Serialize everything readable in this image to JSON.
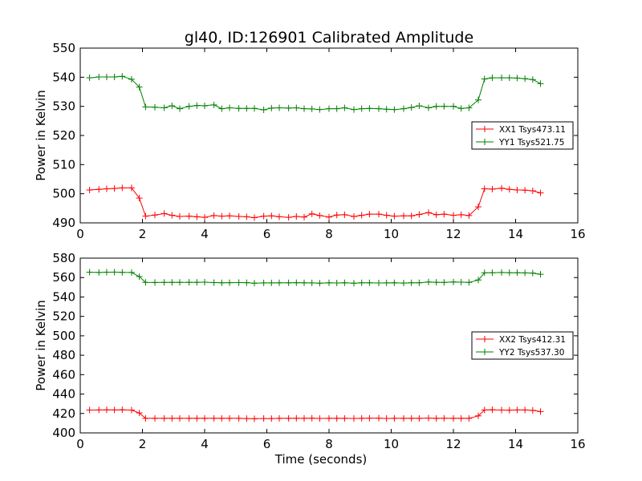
{
  "title": "gl40, ID:126901 Calibrated Amplitude",
  "chart_data": [
    {
      "type": "line",
      "ylabel": "Power in Kelvin",
      "xlabel": "",
      "xlim": [
        0,
        16
      ],
      "ylim": [
        490,
        550
      ],
      "xticks": [
        "0",
        "2",
        "4",
        "6",
        "8",
        "10",
        "12",
        "14",
        "16"
      ],
      "yticks": [
        "490",
        "500",
        "510",
        "520",
        "530",
        "540",
        "550"
      ],
      "legend_position": "right",
      "x": [
        0.3,
        0.6,
        0.85,
        1.1,
        1.35,
        1.65,
        1.9,
        2.1,
        2.4,
        2.7,
        2.95,
        3.2,
        3.5,
        3.75,
        4.0,
        4.3,
        4.55,
        4.8,
        5.1,
        5.35,
        5.6,
        5.9,
        6.15,
        6.4,
        6.7,
        6.95,
        7.2,
        7.45,
        7.7,
        8.0,
        8.25,
        8.5,
        8.8,
        9.05,
        9.3,
        9.6,
        9.85,
        10.1,
        10.4,
        10.65,
        10.9,
        11.2,
        11.45,
        11.7,
        12.0,
        12.25,
        12.5,
        12.8,
        13.0,
        13.25,
        13.55,
        13.8,
        14.05,
        14.3,
        14.55,
        14.8
      ],
      "series": [
        {
          "name": "XX1 Tsys473.11",
          "color": "#ff0000",
          "values": [
            501.3,
            501.5,
            501.7,
            501.8,
            502.0,
            502.0,
            498.5,
            492.3,
            492.7,
            493.2,
            492.6,
            492.2,
            492.3,
            492.1,
            491.9,
            492.5,
            492.3,
            492.4,
            492.2,
            492.1,
            491.8,
            492.3,
            492.4,
            492.1,
            491.9,
            492.2,
            492.0,
            493.1,
            492.5,
            492.0,
            492.7,
            492.8,
            492.2,
            492.6,
            493.0,
            493.0,
            492.6,
            492.3,
            492.4,
            492.4,
            492.9,
            493.5,
            492.8,
            493.0,
            492.6,
            492.8,
            492.5,
            495.5,
            501.7,
            501.6,
            501.9,
            501.5,
            501.3,
            501.2,
            501.0,
            500.3
          ]
        },
        {
          "name": "YY1 Tsys521.75",
          "color": "#008000",
          "values": [
            539.8,
            540.1,
            540.1,
            540.1,
            540.3,
            539.3,
            536.6,
            529.8,
            529.7,
            529.5,
            530.2,
            529.2,
            530.0,
            530.3,
            530.2,
            530.5,
            529.2,
            529.5,
            529.3,
            529.3,
            529.3,
            528.8,
            529.4,
            529.5,
            529.4,
            529.5,
            529.2,
            529.1,
            528.9,
            529.2,
            529.2,
            529.5,
            528.9,
            529.2,
            529.3,
            529.2,
            529.0,
            528.9,
            529.2,
            529.6,
            530.2,
            529.5,
            530.0,
            530.0,
            530.0,
            529.3,
            529.5,
            532.2,
            539.4,
            539.8,
            539.8,
            539.8,
            539.7,
            539.5,
            539.2,
            537.8
          ]
        }
      ]
    },
    {
      "type": "line",
      "ylabel": "Power in Kelvin",
      "xlabel": "Time (seconds)",
      "xlim": [
        0,
        16
      ],
      "ylim": [
        400,
        580
      ],
      "xticks": [
        "0",
        "2",
        "4",
        "6",
        "8",
        "10",
        "12",
        "14",
        "16"
      ],
      "yticks": [
        "400",
        "420",
        "440",
        "460",
        "480",
        "500",
        "520",
        "540",
        "560",
        "580"
      ],
      "legend_position": "right",
      "x": [
        0.3,
        0.6,
        0.85,
        1.1,
        1.35,
        1.65,
        1.9,
        2.1,
        2.4,
        2.7,
        2.95,
        3.2,
        3.5,
        3.75,
        4.0,
        4.3,
        4.55,
        4.8,
        5.1,
        5.35,
        5.6,
        5.9,
        6.15,
        6.4,
        6.7,
        6.95,
        7.2,
        7.45,
        7.7,
        8.0,
        8.25,
        8.5,
        8.8,
        9.05,
        9.3,
        9.6,
        9.85,
        10.1,
        10.4,
        10.65,
        10.9,
        11.2,
        11.45,
        11.7,
        12.0,
        12.25,
        12.5,
        12.8,
        13.0,
        13.25,
        13.55,
        13.8,
        14.05,
        14.3,
        14.55,
        14.8
      ],
      "series": [
        {
          "name": "XX2 Tsys412.31",
          "color": "#ff0000",
          "values": [
            423.5,
            423.6,
            423.7,
            423.6,
            423.8,
            423.5,
            420.5,
            415.0,
            415.0,
            415.0,
            415.0,
            415.0,
            415.0,
            415.0,
            415.0,
            415.0,
            415.0,
            415.0,
            415.0,
            414.8,
            414.6,
            414.9,
            414.8,
            415.0,
            415.0,
            415.1,
            415.0,
            415.2,
            414.9,
            415.0,
            415.0,
            415.0,
            414.9,
            415.0,
            415.2,
            415.2,
            414.9,
            415.0,
            415.0,
            415.0,
            415.0,
            415.3,
            415.0,
            415.1,
            415.0,
            415.0,
            415.0,
            417.5,
            423.6,
            423.8,
            423.5,
            423.4,
            423.6,
            423.6,
            423.2,
            422.0
          ]
        },
        {
          "name": "YY2 Tsys537.30",
          "color": "#008000",
          "values": [
            565.5,
            565.2,
            565.5,
            565.6,
            565.3,
            565.2,
            561.0,
            555.0,
            554.9,
            555.0,
            555.0,
            555.0,
            555.1,
            555.1,
            555.2,
            554.8,
            554.6,
            554.7,
            554.8,
            554.7,
            554.2,
            554.5,
            554.5,
            554.6,
            554.6,
            554.7,
            554.6,
            554.5,
            554.2,
            554.6,
            554.4,
            554.6,
            554.2,
            554.6,
            554.6,
            554.4,
            554.5,
            554.6,
            554.3,
            554.6,
            554.6,
            555.4,
            555.1,
            555.0,
            555.4,
            555.2,
            555.0,
            557.5,
            564.9,
            565.0,
            565.2,
            565.0,
            565.0,
            564.8,
            564.6,
            563.4
          ]
        }
      ]
    }
  ]
}
